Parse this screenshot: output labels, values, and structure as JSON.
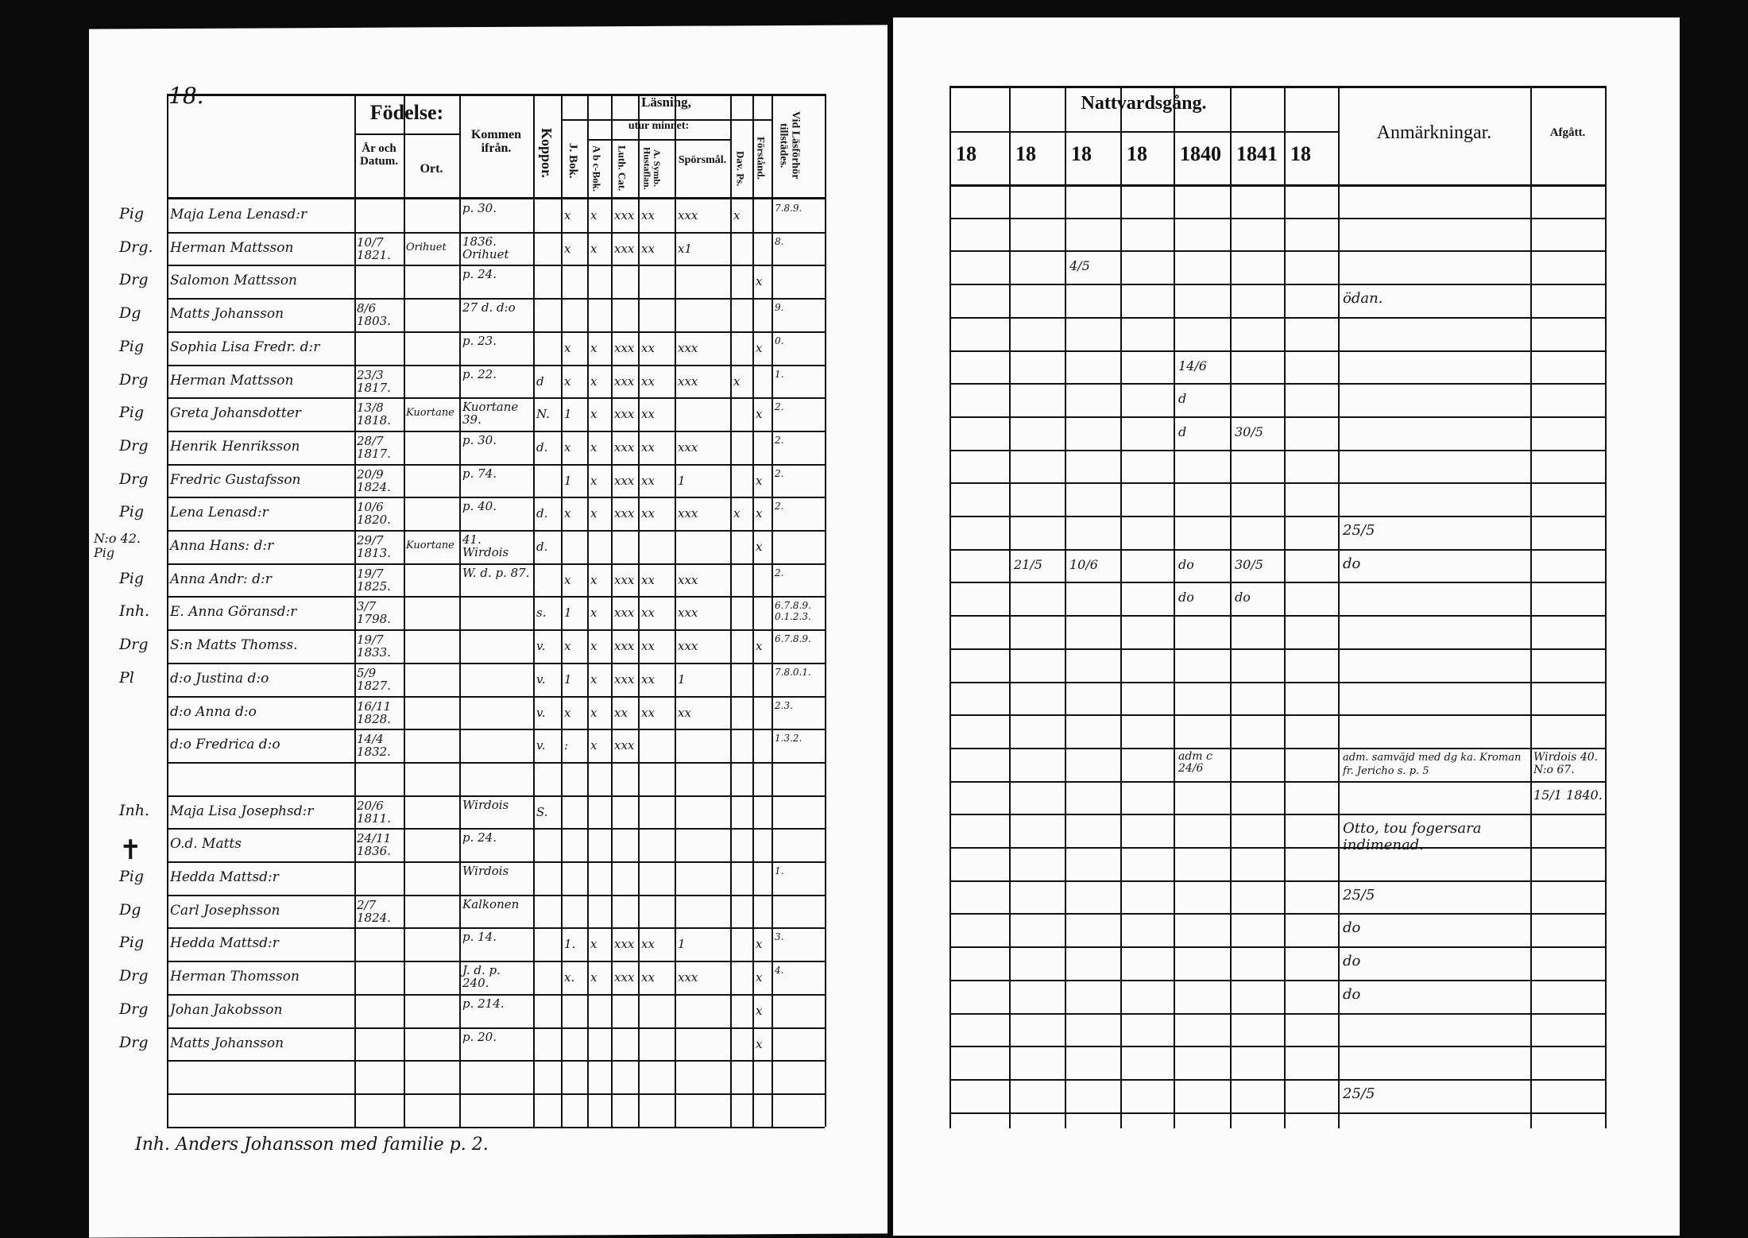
{
  "page_number": "18.",
  "left_headers": {
    "birth": "Födelse:",
    "year_date": "År och Datum.",
    "place": "Ort.",
    "came_from": "Kommen ifrån.",
    "smallpox": "Koppor.",
    "reading": "Läsning,",
    "by_heart": "utur minnet:",
    "j_bok": "J. Bok.",
    "abc": "A b c-Bok.",
    "luth": "Luth. Cat.",
    "symb": "A. Symb. Hustaflan.",
    "questions": "Spörsmål.",
    "dav": "Dav. Ps.",
    "understanding": "Förstånd.",
    "exam": "Vid Läsförhör tillstädes."
  },
  "right_headers": {
    "communion": "Nattvardsgång.",
    "years": [
      "18",
      "18",
      "18",
      "18",
      "1840",
      "1841",
      "18"
    ],
    "remarks": "Anmärkningar.",
    "departed": "Afgått."
  },
  "rows": [
    {
      "margin": "Pig",
      "name": "Maja Lena Lenasd:r",
      "date": "",
      "place": "",
      "from": "p. 30.",
      "cells": [
        "",
        "x",
        "x",
        "xxx",
        "xx",
        "xxx",
        "x",
        "",
        "7.8.9."
      ]
    },
    {
      "margin": "Drg.",
      "name": "Herman Mattsson",
      "date": "10/7 1821.",
      "place": "Orihuet",
      "from": "1836. Orihuet",
      "cells": [
        "",
        "x",
        "x",
        "xxx",
        "xx",
        "x1",
        "",
        "",
        "8."
      ]
    },
    {
      "margin": "Drg",
      "name": "Salomon Mattsson",
      "date": "",
      "place": "",
      "from": "p. 24.",
      "cells": [
        "",
        "",
        "",
        "",
        "",
        "",
        "",
        "x",
        ""
      ]
    },
    {
      "margin": "Dg",
      "name": "Matts Johansson",
      "date": "8/6 1803.",
      "place": "",
      "from": "27 d. d:o",
      "cells": [
        "",
        "",
        "",
        "",
        "",
        "",
        "",
        "",
        "9."
      ]
    },
    {
      "margin": "Pig",
      "name": "Sophia Lisa Fredr. d:r",
      "date": "",
      "place": "",
      "from": "p. 23.",
      "cells": [
        "",
        "x",
        "x",
        "xxx",
        "xx",
        "xxx",
        "",
        "x",
        "0."
      ]
    },
    {
      "margin": "Drg",
      "name": "Herman Mattsson",
      "date": "23/3 1817.",
      "place": "",
      "from": "p. 22.",
      "cells": [
        "d",
        "x",
        "x",
        "xxx",
        "xx",
        "xxx",
        "x",
        "",
        "1."
      ]
    },
    {
      "margin": "Pig",
      "name": "Greta Johansdotter",
      "date": "13/8 1818.",
      "place": "Kuortane",
      "from": "Kuortane 39.",
      "cells": [
        "N.",
        "1",
        "x",
        "xxx",
        "xx",
        "",
        "",
        "x",
        "2."
      ]
    },
    {
      "margin": "Drg",
      "name": "Henrik Henriksson",
      "date": "28/7 1817.",
      "place": "",
      "from": "p. 30.",
      "cells": [
        "d.",
        "x",
        "x",
        "xxx",
        "xx",
        "xxx",
        "",
        "",
        "2."
      ]
    },
    {
      "margin": "Drg",
      "name": "Fredric Gustafsson",
      "date": "20/9 1824.",
      "place": "",
      "from": "p. 74.",
      "cells": [
        "",
        "1",
        "x",
        "xxx",
        "xx",
        "1",
        "",
        "x",
        "2."
      ]
    },
    {
      "margin": "Pig",
      "name": "Lena Lenasd:r",
      "date": "10/6 1820.",
      "place": "",
      "from": "p. 40.",
      "cells": [
        "d.",
        "x",
        "x",
        "xxx",
        "xx",
        "xxx",
        "x",
        "x",
        "2."
      ]
    },
    {
      "margin": "N:o 42. Pig",
      "name": "Anna Hans: d:r",
      "date": "29/7 1813.",
      "place": "Kuortane",
      "from": "41. Wirdois",
      "cells": [
        "d.",
        "",
        "",
        "",
        "",
        "",
        "",
        "x",
        ""
      ]
    },
    {
      "margin": "Pig",
      "name": "Anna Andr: d:r",
      "date": "19/7 1825.",
      "place": "",
      "from": "W. d. p. 87.",
      "cells": [
        "",
        "x",
        "x",
        "xxx",
        "xx",
        "xxx",
        "",
        "",
        "2."
      ]
    },
    {
      "margin": "Inh.",
      "name": "E. Anna Göransd:r",
      "date": "3/7 1798.",
      "place": "",
      "from": "",
      "cells": [
        "s.",
        "1",
        "x",
        "xxx",
        "xx",
        "xxx",
        "",
        "",
        "6.7.8.9. 0.1.2.3."
      ]
    },
    {
      "margin": "Drg",
      "name": "S:n Matts Thomss.",
      "date": "19/7 1833.",
      "place": "",
      "from": "",
      "cells": [
        "v.",
        "x",
        "x",
        "xxx",
        "xx",
        "xxx",
        "",
        "x",
        "6.7.8.9."
      ]
    },
    {
      "margin": "Pl",
      "name": "d:o Justina d:o",
      "date": "5/9 1827.",
      "place": "",
      "from": "",
      "cells": [
        "v.",
        "1",
        "x",
        "xxx",
        "xx",
        "1",
        "",
        "",
        "7.8.0.1."
      ]
    },
    {
      "margin": "",
      "name": "d:o Anna d:o",
      "date": "16/11 1828.",
      "place": "",
      "from": "",
      "cells": [
        "v.",
        "x",
        "x",
        "xx",
        "xx",
        "xx",
        "",
        "",
        "2.3."
      ]
    },
    {
      "margin": "",
      "name": "d:o Fredrica d:o",
      "date": "14/4 1832.",
      "place": "",
      "from": "",
      "cells": [
        "v.",
        ":",
        "x",
        "xxx",
        "",
        "",
        "",
        "",
        "1.3.2."
      ]
    },
    {
      "margin": "",
      "name": "",
      "date": "",
      "place": "",
      "from": "",
      "cells": [
        "",
        "",
        "",
        "",
        "",
        "",
        "",
        "",
        ""
      ]
    },
    {
      "margin": "Inh.",
      "name": "Maja Lisa Josephsd:r",
      "date": "20/6 1811.",
      "place": "",
      "from": "Wirdois",
      "cells": [
        "S.",
        "",
        "",
        "",
        "",
        "",
        "",
        "",
        ""
      ]
    },
    {
      "margin": "✝",
      "name": "O.d. Matts",
      "date": "24/11 1836.",
      "place": "",
      "from": "p. 24.",
      "cells": [
        "",
        "",
        "",
        "",
        "",
        "",
        "",
        "",
        ""
      ]
    },
    {
      "margin": "Pig",
      "name": "Hedda Mattsd:r",
      "date": "",
      "place": "",
      "from": "Wirdois",
      "cells": [
        "",
        "",
        "",
        "",
        "",
        "",
        "",
        "",
        "1."
      ]
    },
    {
      "margin": "Dg",
      "name": "Carl Josephsson",
      "date": "2/7 1824.",
      "place": "",
      "from": "Kalkonen",
      "cells": [
        "",
        "",
        "",
        "",
        "",
        "",
        "",
        "",
        ""
      ]
    },
    {
      "margin": "Pig",
      "name": "Hedda Mattsd:r",
      "date": "",
      "place": "",
      "from": "p. 14.",
      "cells": [
        "",
        "1.",
        "x",
        "xxx",
        "xx",
        "1",
        "",
        "x",
        "3."
      ]
    },
    {
      "margin": "Drg",
      "name": "Herman Thomsson",
      "date": "",
      "place": "",
      "from": "J. d. p. 240.",
      "cells": [
        "",
        "x.",
        "x",
        "xxx",
        "xx",
        "xxx",
        "",
        "x",
        "4."
      ]
    },
    {
      "margin": "Drg",
      "name": "Johan Jakobsson",
      "date": "",
      "place": "",
      "from": "p. 214.",
      "cells": [
        "",
        "",
        "",
        "",
        "",
        "",
        "",
        "x",
        ""
      ]
    },
    {
      "margin": "Drg",
      "name": "Matts Johansson",
      "date": "",
      "place": "",
      "from": "p. 20.",
      "cells": [
        "",
        "",
        "",
        "",
        "",
        "",
        "",
        "x",
        ""
      ]
    },
    {
      "margin": "",
      "name": "",
      "date": "",
      "place": "",
      "from": "",
      "cells": [
        "",
        "",
        "",
        "",
        "",
        "",
        "",
        "",
        ""
      ]
    },
    {
      "margin": "",
      "name": "",
      "date": "",
      "place": "",
      "from": "",
      "cells": [
        "",
        "",
        "",
        "",
        "",
        "",
        "",
        "",
        ""
      ]
    }
  ],
  "footer_line": "Inh. Anders Johansson med familie p. 2.",
  "right_rows": [
    {
      "r": 2,
      "years": [
        "",
        "",
        "4/5",
        "",
        "",
        "",
        ""
      ],
      "remark": "",
      "departed": ""
    },
    {
      "r": 3,
      "years": [
        "",
        "",
        "",
        "",
        "",
        "",
        ""
      ],
      "remark": "ödan.",
      "departed": ""
    },
    {
      "r": 5,
      "years": [
        "",
        "",
        "",
        "",
        "14/6",
        "",
        ""
      ],
      "remark": "",
      "departed": ""
    },
    {
      "r": 6,
      "years": [
        "",
        "",
        "",
        "",
        "d",
        "",
        ""
      ],
      "remark": "",
      "departed": ""
    },
    {
      "r": 7,
      "years": [
        "",
        "",
        "",
        "",
        "d",
        "30/5",
        ""
      ],
      "remark": "",
      "departed": ""
    },
    {
      "r": 10,
      "years": [
        "",
        "",
        "",
        "",
        "",
        "",
        ""
      ],
      "remark": "25/5",
      "departed": ""
    },
    {
      "r": 11,
      "years": [
        "",
        "21/5",
        "10/6",
        "",
        "do",
        "30/5",
        ""
      ],
      "remark": "do",
      "departed": ""
    },
    {
      "r": 12,
      "years": [
        "",
        "",
        "",
        "",
        "do",
        "do",
        ""
      ],
      "remark": "",
      "departed": ""
    },
    {
      "r": 17,
      "years": [
        "",
        "",
        "",
        "",
        "adm c 24/6",
        "",
        ""
      ],
      "remark": "adm. samväjd med dg ka. Kroman fr. Jericho s. p. 5",
      "departed": "Wirdois 40. N:o 67."
    },
    {
      "r": 18,
      "years": [
        "",
        "",
        "",
        "",
        "",
        "",
        ""
      ],
      "remark": "",
      "departed": "15/1 1840."
    },
    {
      "r": 19,
      "years": [
        "",
        "",
        "",
        "",
        "",
        "",
        ""
      ],
      "remark": "Otto, tou fogersara indimenad.",
      "departed": ""
    },
    {
      "r": 21,
      "years": [
        "",
        "",
        "",
        "",
        "",
        "",
        ""
      ],
      "remark": "25/5",
      "departed": ""
    },
    {
      "r": 22,
      "years": [
        "",
        "",
        "",
        "",
        "",
        "",
        ""
      ],
      "remark": "do",
      "departed": ""
    },
    {
      "r": 23,
      "years": [
        "",
        "",
        "",
        "",
        "",
        "",
        ""
      ],
      "remark": "do",
      "departed": ""
    },
    {
      "r": 24,
      "years": [
        "",
        "",
        "",
        "",
        "",
        "",
        ""
      ],
      "remark": "do",
      "departed": ""
    },
    {
      "r": 27,
      "years": [
        "",
        "",
        "",
        "",
        "",
        "",
        ""
      ],
      "remark": "25/5",
      "departed": ""
    }
  ]
}
